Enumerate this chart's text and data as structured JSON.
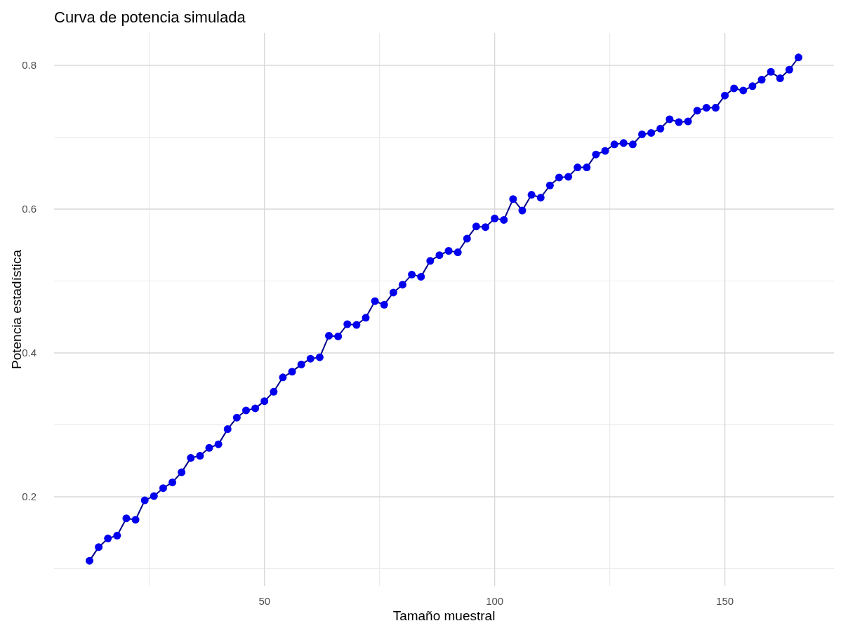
{
  "chart_data": {
    "type": "line",
    "title": "Curva de potencia simulada",
    "xlabel": "Tamaño muestral",
    "ylabel": "Potencia estadística",
    "x": [
      12,
      14,
      16,
      18,
      20,
      22,
      24,
      26,
      28,
      30,
      32,
      34,
      36,
      38,
      40,
      42,
      44,
      46,
      48,
      50,
      52,
      54,
      56,
      58,
      60,
      62,
      64,
      66,
      68,
      70,
      72,
      74,
      76,
      78,
      80,
      82,
      84,
      86,
      88,
      90,
      92,
      94,
      96,
      98,
      100,
      102,
      104,
      106,
      108,
      110,
      112,
      114,
      116,
      118,
      120,
      122,
      124,
      126,
      128,
      130,
      132,
      134,
      136,
      138,
      140,
      142,
      144,
      146,
      148,
      150,
      152,
      154,
      156,
      158,
      160,
      162,
      164,
      166
    ],
    "series": [
      {
        "color": "#00008b",
        "marker": "none",
        "values": [
          0.111,
          0.13,
          0.142,
          0.146,
          0.17,
          0.168,
          0.195,
          0.201,
          0.212,
          0.22,
          0.234,
          0.254,
          0.257,
          0.268,
          0.273,
          0.294,
          0.31,
          0.32,
          0.323,
          0.333,
          0.346,
          0.366,
          0.374,
          0.384,
          0.392,
          0.394,
          0.424,
          0.423,
          0.44,
          0.439,
          0.449,
          0.472,
          0.467,
          0.484,
          0.495,
          0.509,
          0.506,
          0.528,
          0.536,
          0.542,
          0.54,
          0.559,
          0.576,
          0.575,
          0.587,
          0.585,
          0.614,
          0.598,
          0.62,
          0.616,
          0.633,
          0.644,
          0.645,
          0.658,
          0.658,
          0.676,
          0.681,
          0.69,
          0.692,
          0.69,
          0.704,
          0.706,
          0.712,
          0.725,
          0.721,
          0.722,
          0.737,
          0.741,
          0.741,
          0.758,
          0.768,
          0.765,
          0.771,
          0.78,
          0.791,
          0.782,
          0.794,
          0.811
        ]
      },
      {
        "type": "scatter",
        "color": "#0000ee",
        "marker": "circle",
        "values": [
          0.111,
          0.13,
          0.142,
          0.146,
          0.17,
          0.168,
          0.195,
          0.201,
          0.212,
          0.22,
          0.234,
          0.254,
          0.257,
          0.268,
          0.273,
          0.294,
          0.31,
          0.32,
          0.323,
          0.333,
          0.346,
          0.366,
          0.374,
          0.384,
          0.392,
          0.394,
          0.424,
          0.423,
          0.44,
          0.439,
          0.449,
          0.472,
          0.467,
          0.484,
          0.495,
          0.509,
          0.506,
          0.528,
          0.536,
          0.542,
          0.54,
          0.559,
          0.576,
          0.575,
          0.587,
          0.585,
          0.614,
          0.598,
          0.62,
          0.616,
          0.633,
          0.644,
          0.645,
          0.658,
          0.658,
          0.676,
          0.681,
          0.69,
          0.692,
          0.69,
          0.704,
          0.706,
          0.712,
          0.725,
          0.721,
          0.722,
          0.737,
          0.741,
          0.741,
          0.758,
          0.768,
          0.765,
          0.771,
          0.78,
          0.791,
          0.782,
          0.794,
          0.811
        ]
      }
    ],
    "xlim": [
      4.3,
      173.7
    ],
    "xticks": [
      50,
      100,
      150
    ],
    "ylim": [
      0.076,
      0.845
    ],
    "yticks": [
      0.2,
      0.4,
      0.6,
      0.8
    ],
    "grid": true,
    "line_style": "solid"
  }
}
